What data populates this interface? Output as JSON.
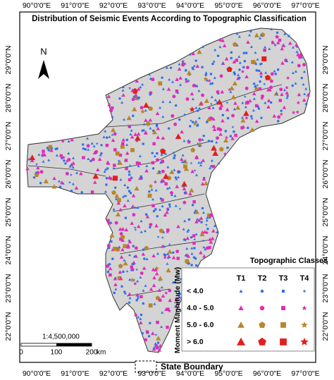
{
  "title": "Distribution of Seismic Events According to Topographic Classification",
  "north": "N",
  "longitude_labels": [
    "90°0'0\"E",
    "91°0'0\"E",
    "92°0'0\"E",
    "93°0'0\"E",
    "94°0'0\"E",
    "95°0'0\"E",
    "96°0'0\"E",
    "97°0'0\"E"
  ],
  "latitude_labels": [
    "29°0'0\"N",
    "28°0'0\"N",
    "27°0'0\"N",
    "26°0'0\"N",
    "25°0'0\"N",
    "24°0'0\"N",
    "23°0'0\"N",
    "22°0'0\"N"
  ],
  "scale": {
    "ratio": "1:4,500,000",
    "ticks": [
      "0",
      "100",
      "200"
    ],
    "unit": "km"
  },
  "legend": {
    "title": "Topographic Classes",
    "columns": [
      "T1",
      "T2",
      "T3",
      "T4"
    ],
    "axis_label": "Moment Magnitude (Mw)",
    "rows": [
      "< 4.0",
      "4.0 - 5.0",
      "5.0 - 6.0",
      "> 6.0"
    ]
  },
  "boundary_label": "State Boundary"
}
